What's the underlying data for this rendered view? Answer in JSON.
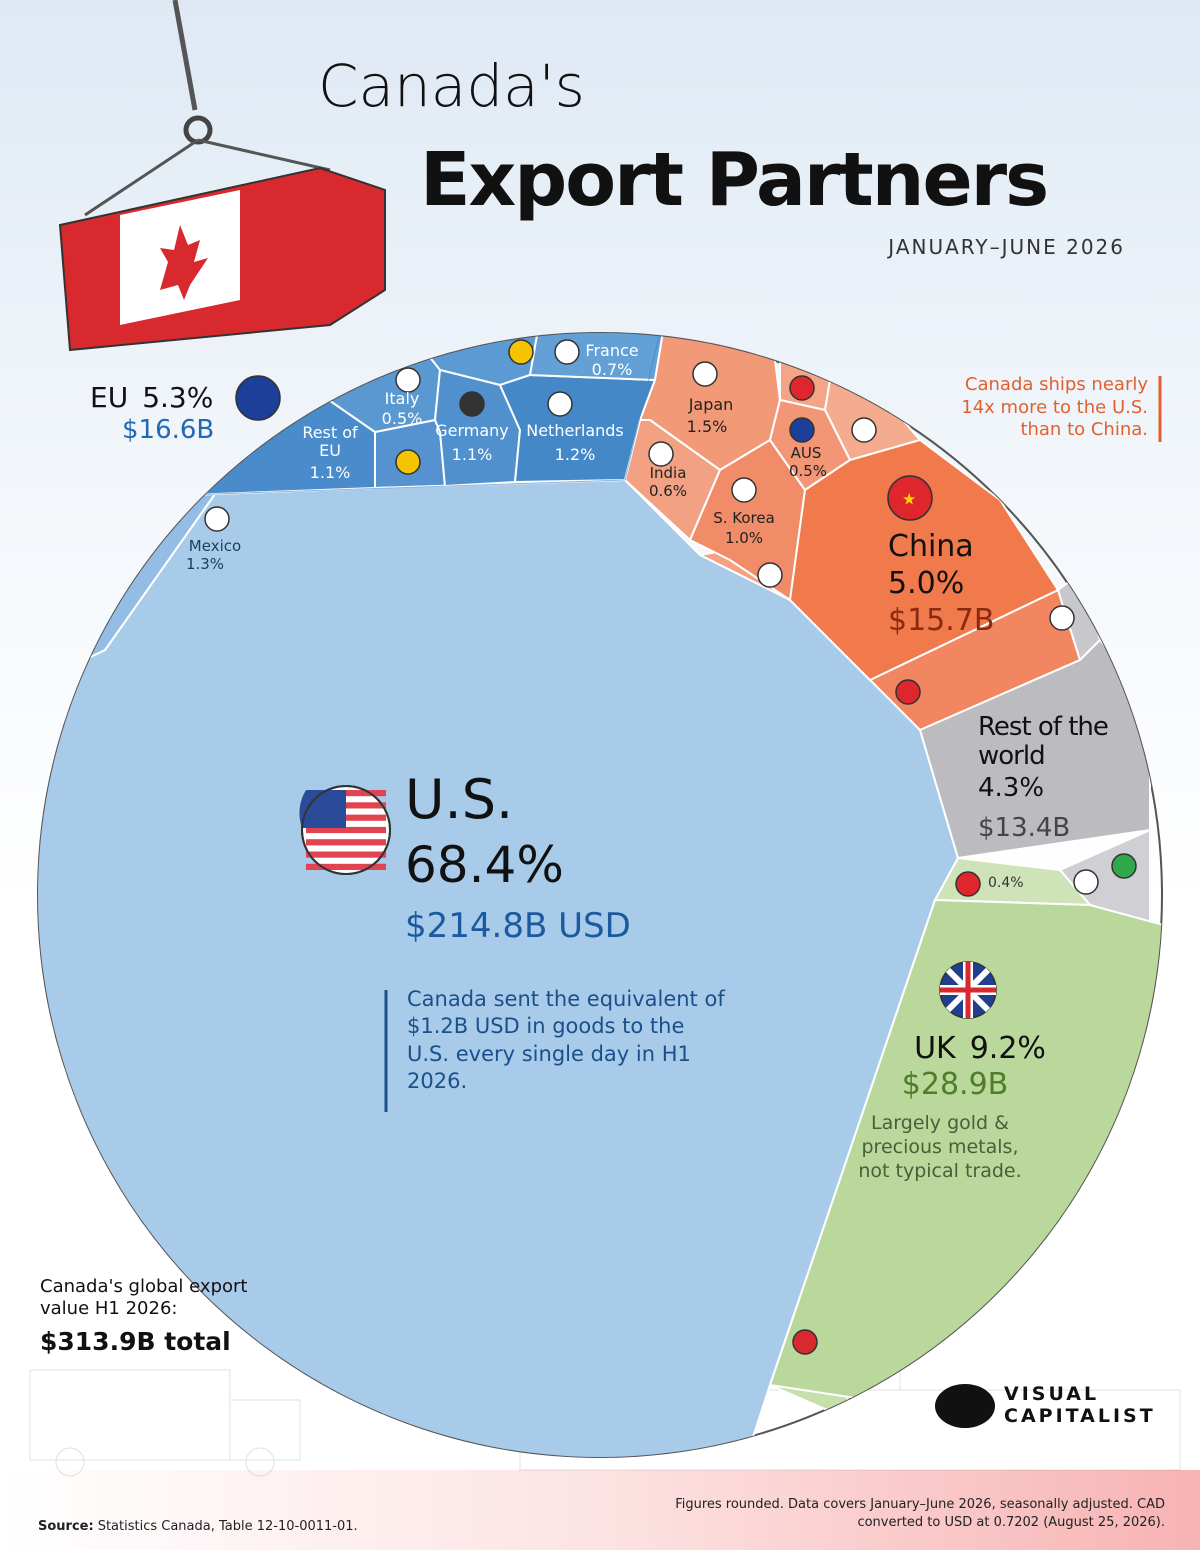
{
  "chart_data": {
    "type": "voronoi",
    "title_lines": [
      "Canada's",
      "Export Partners"
    ],
    "subtitle": "JANUARY–JUNE 2026",
    "annotation": "Canada ships nearly 14x more to the U.S. than to China.",
    "cells": [
      {
        "name": "U.S.",
        "color": "#a9cbea",
        "value": 68.4,
        "value_label": "68.4%",
        "amount": 214.8,
        "amount_label": "$214.8B USD",
        "note": "Canada sent the equivalent of $1.2B USD in goods to the U.S. every single day in H1 2026."
      },
      {
        "name": "Mexico",
        "color": "#93bde4",
        "value": 1.3,
        "value_label": "1.3%"
      },
      {
        "name": "EU",
        "color": "#3f83c4",
        "value": 5.3,
        "value_label": "5.3%",
        "amount": 16.6,
        "amount_label": "$16.6B"
      },
      {
        "name": "Rest of EU",
        "color": "#4a8ccb",
        "value": 1.1,
        "value_label": "1.1%"
      },
      {
        "name": "Italy",
        "color": "#5a98d2",
        "value": 0.5,
        "value_label": "0.5%"
      },
      {
        "name": "Germany",
        "color": "#4f90cd",
        "value": 1.1,
        "value_label": "1.1%"
      },
      {
        "name": "Netherlands",
        "color": "#4488c8",
        "value": 1.2,
        "value_label": "1.2%"
      },
      {
        "name": "France",
        "color": "#62a0d6",
        "value": 0.7,
        "value_label": "0.7%"
      },
      {
        "name": "Japan",
        "color": "#f29a78",
        "value": 1.5,
        "value_label": "1.5%"
      },
      {
        "name": "India",
        "color": "#f2a283",
        "value": 0.6,
        "value_label": "0.6%"
      },
      {
        "name": "S. Korea",
        "color": "#f08d68",
        "value": 1.0,
        "value_label": "1.0%"
      },
      {
        "name": "AUS",
        "color": "#f39675",
        "value": 0.5,
        "value_label": "0.5%"
      },
      {
        "name": "China",
        "color": "#f07a4c",
        "value": 5.0,
        "value_label": "5.0%",
        "amount": 15.7,
        "amount_label": "$15.7B"
      },
      {
        "name": "Rest of the world",
        "color": "#bcbcc0",
        "value": 4.3,
        "value_label": "4.3%",
        "amount": 13.4,
        "amount_label": "$13.4B"
      },
      {
        "color": "#cfe3b8",
        "value": 0.4,
        "value_label": "0.4%"
      },
      {
        "name": "UK",
        "color": "#bad89b",
        "value": 9.2,
        "value_label": "9.2%",
        "amount": 28.9,
        "amount_label": "$28.9B",
        "note": "Largely gold & precious metals, not typical trade."
      }
    ],
    "total_caption": "Canada's global export value H1 2026:",
    "total": 313.9,
    "total_label": "$313.9B total",
    "source_label": "Source:",
    "source": "Statistics Canada, Table 12-10-0011-01.",
    "footnote": "Figures rounded. Data covers January–June 2026, seasonally adjusted. CAD converted to USD at 0.7202 (August 25, 2026).",
    "brand": [
      "VISUAL",
      "CAPITALIST"
    ]
  }
}
